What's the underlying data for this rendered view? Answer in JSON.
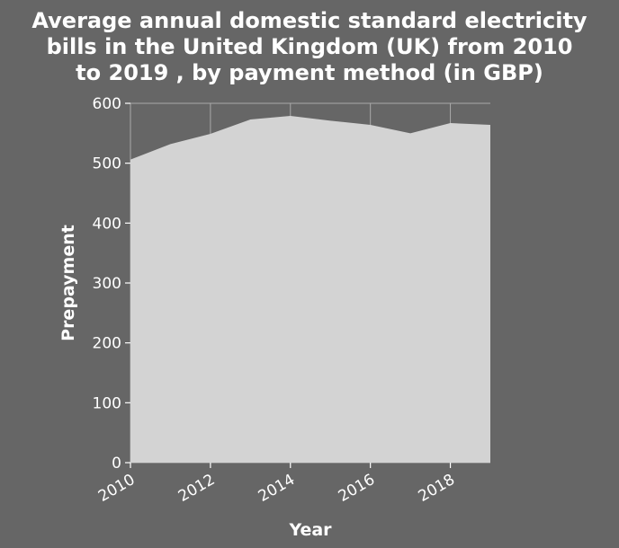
{
  "chart_data": {
    "type": "area",
    "title_lines": [
      "Average annual domestic standard electricity",
      "bills in the United Kingdom (UK) from 2010",
      "to 2019 , by payment method (in GBP)"
    ],
    "xlabel": "Year",
    "ylabel": "Prepayment",
    "x": [
      2010,
      2011,
      2012,
      2013,
      2014,
      2015,
      2016,
      2017,
      2018,
      2019
    ],
    "values": [
      506,
      532,
      549,
      573,
      579,
      571,
      564,
      550,
      567,
      564
    ],
    "xlim": [
      2010,
      2019
    ],
    "ylim": [
      0,
      600
    ],
    "xticks": [
      2010,
      2012,
      2014,
      2016,
      2018
    ],
    "yticks": [
      0,
      100,
      200,
      300,
      400,
      500,
      600
    ],
    "xtick_labels": [
      "2010",
      "2012",
      "2014",
      "2016",
      "2018"
    ],
    "ytick_labels": [
      "0",
      "100",
      "200",
      "300",
      "400",
      "500",
      "600"
    ],
    "grid": true,
    "colors": {
      "background": "#666666",
      "plot_background": "#666666",
      "area_fill": "#d3d3d3",
      "grid": "#a9a9a9",
      "text": "#ffffff"
    }
  }
}
